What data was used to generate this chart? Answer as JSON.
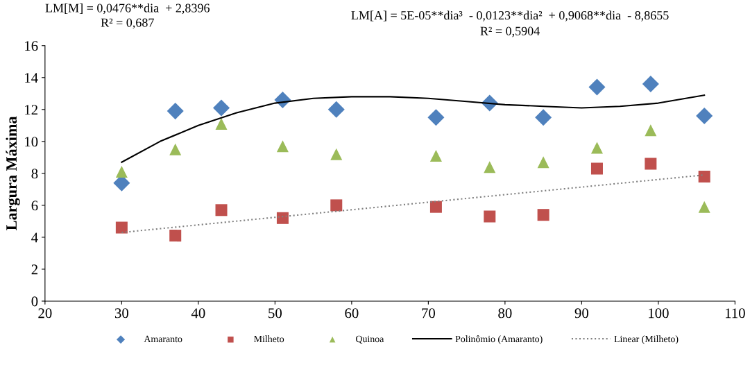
{
  "chart_data": {
    "type": "scatter",
    "ylabel": "Largura Máxima",
    "xlim": [
      20,
      110
    ],
    "xticks": [
      20,
      30,
      40,
      50,
      60,
      70,
      80,
      90,
      100,
      110
    ],
    "ylim": [
      0,
      16
    ],
    "yticks": [
      0,
      2,
      4,
      6,
      8,
      10,
      12,
      14,
      16
    ],
    "grid": false,
    "legend": "bottom",
    "annotations": [
      "LM[M] = 0,0476**dia  + 2,8396",
      "R² = 0,687",
      "LM[A] = 5E-05**dia³  - 0,0123**dia²  + 0,9068**dia  - 8,8655",
      "R² = 0,5904"
    ],
    "series": [
      {
        "name": "Amaranto",
        "marker": "diamond",
        "color": "#4f81bd",
        "x": [
          30,
          37,
          43,
          51,
          58,
          71,
          78,
          85,
          92,
          99,
          106
        ],
        "values": [
          7.4,
          11.9,
          12.1,
          12.6,
          12.0,
          11.5,
          12.4,
          11.5,
          13.4,
          13.6,
          11.6
        ]
      },
      {
        "name": "Milheto",
        "marker": "square",
        "color": "#c0504d",
        "x": [
          30,
          37,
          43,
          51,
          58,
          71,
          78,
          85,
          92,
          99,
          106
        ],
        "values": [
          4.6,
          4.1,
          5.7,
          5.2,
          6.0,
          5.9,
          5.3,
          5.4,
          8.3,
          8.6,
          7.8
        ]
      },
      {
        "name": "Quinoa",
        "marker": "triangle",
        "color": "#9bbb59",
        "x": [
          30,
          37,
          43,
          51,
          58,
          71,
          78,
          85,
          92,
          99,
          106
        ],
        "values": [
          8.1,
          9.5,
          11.1,
          9.7,
          9.2,
          9.1,
          8.4,
          8.7,
          9.6,
          10.7,
          5.9
        ]
      },
      {
        "name": "Polinômio (Amaranto)",
        "type": "line",
        "line_style": "solid",
        "color": "#000000",
        "x": [
          30,
          35,
          40,
          45,
          50,
          55,
          60,
          65,
          70,
          75,
          80,
          85,
          90,
          95,
          100,
          106
        ],
        "values": [
          8.7,
          10.0,
          11.0,
          11.8,
          12.4,
          12.7,
          12.8,
          12.8,
          12.7,
          12.5,
          12.3,
          12.2,
          12.1,
          12.2,
          12.4,
          12.9
        ]
      },
      {
        "name": "Linear (Milheto)",
        "type": "line",
        "line_style": "dotted",
        "color": "#808080",
        "x": [
          30,
          106
        ],
        "values": [
          4.3,
          7.9
        ]
      }
    ]
  }
}
